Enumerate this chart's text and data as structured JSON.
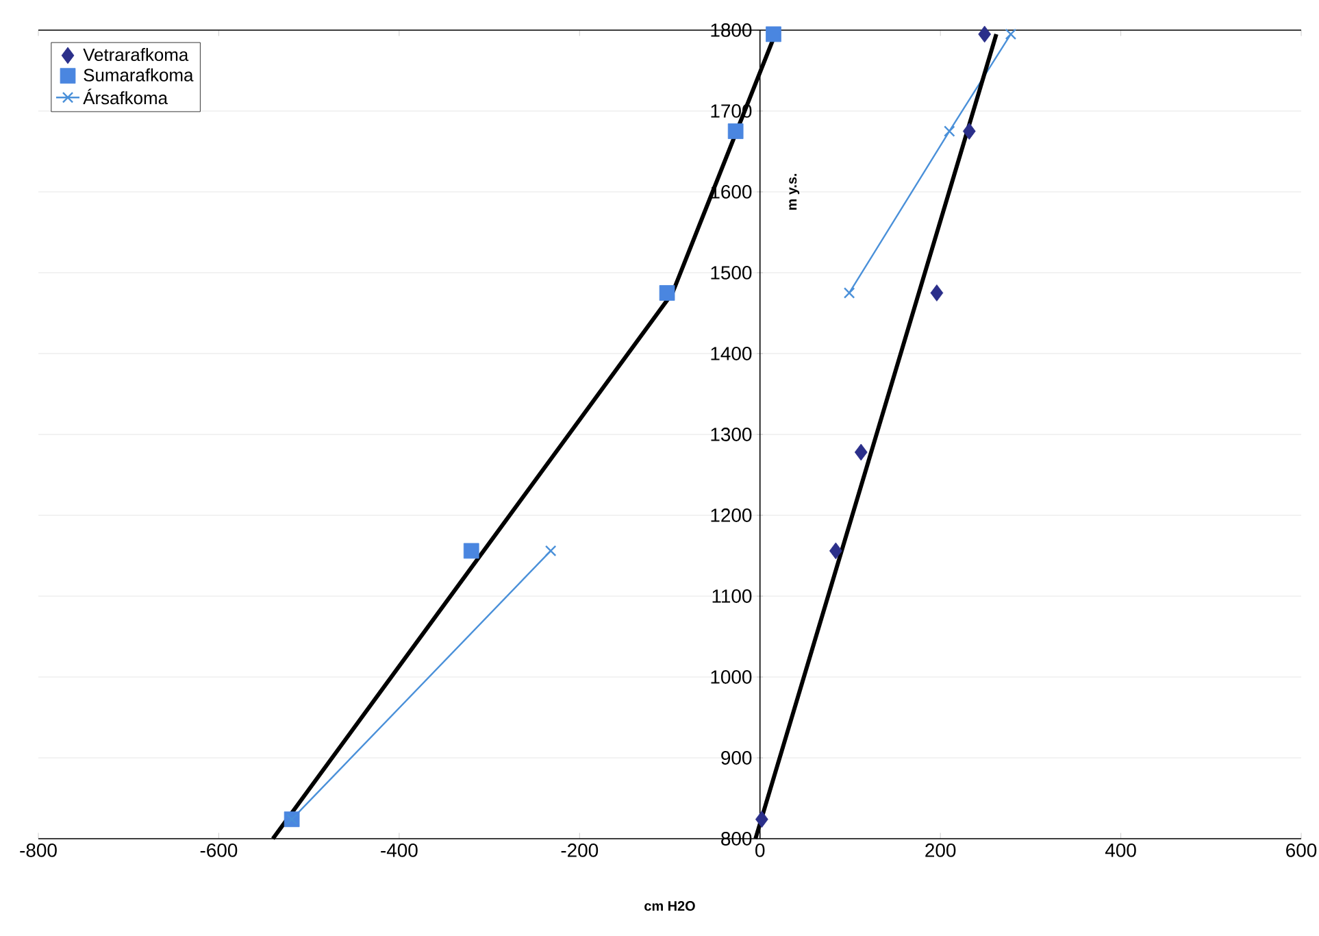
{
  "chart_data": {
    "type": "scatter",
    "xlabel": "cm H2O",
    "ylabel": "m y.s.",
    "xlim": [
      -800,
      600
    ],
    "xticks": [
      -800,
      -600,
      -400,
      -200,
      0,
      200,
      400,
      600
    ],
    "ylim": [
      800,
      1800
    ],
    "yticks": [
      800,
      900,
      1000,
      1100,
      1200,
      1300,
      1400,
      1500,
      1600,
      1700,
      1800
    ],
    "grid": "y",
    "legend": "top left",
    "series": [
      {
        "name": "Vetrarafkoma",
        "marker": "diamond",
        "color": "#2b2f8a",
        "x": [
          2,
          84,
          112,
          196,
          232,
          249
        ],
        "values": [
          824,
          1156,
          1278,
          1475,
          1675,
          1795
        ]
      },
      {
        "name": "Sumarafkoma",
        "marker": "square",
        "color": "#4a86e0",
        "x": [
          -519,
          -320,
          -103,
          -27,
          15
        ],
        "values": [
          824,
          1156,
          1475,
          1675,
          1795
        ]
      },
      {
        "name": "Ársafkoma",
        "type": "line",
        "marker": "cross",
        "line_style": "solid",
        "color": "#4a90d9",
        "x": [
          -519,
          -232,
          null,
          99,
          210,
          278
        ],
        "values": [
          824,
          1156,
          null,
          1475,
          1675,
          1795
        ]
      },
      {
        "type": "line",
        "marker": "none",
        "line_style": "solid",
        "color": "#000000",
        "x": [
          -540,
          -97,
          15
        ],
        "values": [
          800,
          1475,
          1790
        ]
      },
      {
        "type": "line",
        "marker": "none",
        "line_style": "solid",
        "color": "#000000",
        "x": [
          -5,
          262
        ],
        "values": [
          800,
          1795
        ]
      }
    ]
  }
}
